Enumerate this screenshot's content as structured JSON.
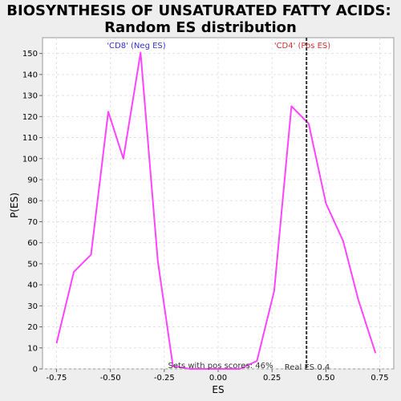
{
  "chart_data": {
    "type": "line",
    "title_lines": [
      "BIOSYNTHESIS OF UNSATURATED FATTY ACIDS:",
      "Random ES distribution"
    ],
    "xlabel": "ES",
    "ylabel": "P(ES)",
    "xlim": [
      -0.815,
      0.815
    ],
    "ylim": [
      0,
      157.5
    ],
    "xticks": [
      -0.75,
      -0.5,
      -0.25,
      0.0,
      0.25,
      0.5,
      0.75
    ],
    "xtick_labels": [
      "-0.75",
      "-0.50",
      "-0.25",
      "0.00",
      "0.25",
      "0.50",
      "0.75"
    ],
    "yticks": [
      0,
      10,
      20,
      30,
      40,
      50,
      60,
      70,
      80,
      90,
      100,
      110,
      120,
      130,
      140,
      150
    ],
    "ytick_labels": [
      "0",
      "10",
      "20",
      "30",
      "40",
      "50",
      "60",
      "70",
      "80",
      "90",
      "100",
      "110",
      "120",
      "130",
      "140",
      "150"
    ],
    "grid": true,
    "series": [
      {
        "color": "#ff44ff",
        "x": [
          -0.75,
          -0.67,
          -0.59,
          -0.51,
          -0.44,
          -0.36,
          -0.28,
          -0.21,
          -0.13,
          -0.05,
          0.03,
          0.1,
          0.18,
          0.26,
          0.34,
          0.42,
          0.5,
          0.58,
          0.65,
          0.73
        ],
        "y": [
          12.2,
          46.1,
          54.3,
          122.3,
          100.0,
          150.4,
          51.2,
          1.4,
          0.0,
          0.0,
          0.0,
          0.0,
          3.8,
          37.1,
          124.9,
          116.6,
          78.7,
          60.8,
          33.0,
          7.5
        ]
      }
    ],
    "vline": {
      "x": 0.41,
      "label": "Real ES 0.4"
    },
    "annotations": {
      "left_label": "'CD8' (Neg ES)",
      "left_color": "#3333cc",
      "right_label": "'CD4' (Pos ES)",
      "right_color": "#cc3333",
      "bottom_text": "Sets with pos scores: 46%"
    }
  }
}
